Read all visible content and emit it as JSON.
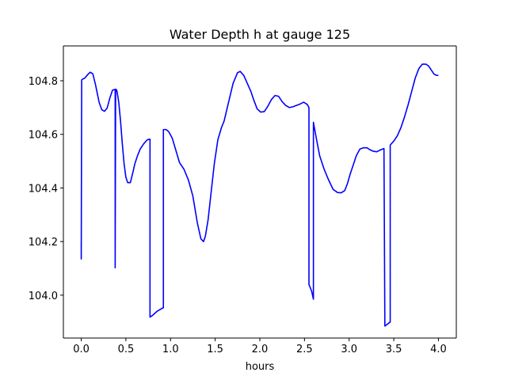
{
  "chart_data": {
    "type": "line",
    "title": "Water Depth h at gauge 125",
    "xlabel": "hours",
    "ylabel": "",
    "xlim": [
      -0.2,
      4.2
    ],
    "ylim": [
      103.84,
      104.93
    ],
    "xticks": [
      0.0,
      0.5,
      1.0,
      1.5,
      2.0,
      2.5,
      3.0,
      3.5,
      4.0
    ],
    "xtick_labels": [
      "0.0",
      "0.5",
      "1.0",
      "1.5",
      "2.0",
      "2.5",
      "3.0",
      "3.5",
      "4.0"
    ],
    "yticks": [
      104.0,
      104.2,
      104.4,
      104.6,
      104.8
    ],
    "ytick_labels": [
      "104.0",
      "104.2",
      "104.4",
      "104.6",
      "104.8"
    ],
    "grid": false,
    "series": [
      {
        "color": "#0000ff",
        "x": [
          0.0,
          0.0,
          0.005,
          0.01,
          0.04,
          0.07,
          0.1,
          0.13,
          0.16,
          0.2,
          0.23,
          0.26,
          0.29,
          0.32,
          0.35,
          0.38,
          0.38,
          0.385,
          0.39,
          0.4,
          0.42,
          0.44,
          0.46,
          0.48,
          0.5,
          0.52,
          0.55,
          0.58,
          0.6,
          0.63,
          0.66,
          0.7,
          0.74,
          0.77,
          0.77,
          0.8,
          0.85,
          0.9,
          0.92,
          0.92,
          0.95,
          0.98,
          1.02,
          1.06,
          1.1,
          1.15,
          1.2,
          1.25,
          1.3,
          1.34,
          1.37,
          1.39,
          1.42,
          1.45,
          1.49,
          1.53,
          1.57,
          1.6,
          1.65,
          1.7,
          1.75,
          1.78,
          1.82,
          1.86,
          1.9,
          1.93,
          1.97,
          2.01,
          2.05,
          2.09,
          2.13,
          2.17,
          2.21,
          2.25,
          2.29,
          2.33,
          2.37,
          2.41,
          2.45,
          2.49,
          2.53,
          2.55,
          2.55,
          2.58,
          2.6,
          2.6,
          2.63,
          2.67,
          2.72,
          2.77,
          2.82,
          2.87,
          2.91,
          2.95,
          2.98,
          3.01,
          3.04,
          3.08,
          3.12,
          3.16,
          3.2,
          3.23,
          3.27,
          3.31,
          3.35,
          3.39,
          3.4,
          3.41,
          3.46,
          3.46,
          3.5,
          3.54,
          3.58,
          3.62,
          3.66,
          3.7,
          3.74,
          3.78,
          3.82,
          3.86,
          3.89,
          3.92,
          3.95,
          3.98,
          4.0
        ],
        "y": [
          104.2,
          104.135,
          104.803,
          104.805,
          104.81,
          104.822,
          104.832,
          104.826,
          104.785,
          104.72,
          104.692,
          104.686,
          104.698,
          104.735,
          104.765,
          104.768,
          104.102,
          104.755,
          104.768,
          104.762,
          104.72,
          104.65,
          104.565,
          104.49,
          104.44,
          104.42,
          104.42,
          104.46,
          104.49,
          104.52,
          104.545,
          104.565,
          104.58,
          104.582,
          103.918,
          103.925,
          103.94,
          103.95,
          103.953,
          104.618,
          104.618,
          104.61,
          104.585,
          104.54,
          104.495,
          104.47,
          104.43,
          104.37,
          104.27,
          104.21,
          104.2,
          104.22,
          104.28,
          104.37,
          104.49,
          104.58,
          104.625,
          104.65,
          104.72,
          104.79,
          104.83,
          104.835,
          104.82,
          104.79,
          104.76,
          104.73,
          104.695,
          104.683,
          104.685,
          104.705,
          104.73,
          104.745,
          104.742,
          104.722,
          104.708,
          104.7,
          104.703,
          104.708,
          104.713,
          104.72,
          104.712,
          104.7,
          104.04,
          104.015,
          103.985,
          104.645,
          104.59,
          104.52,
          104.47,
          104.43,
          104.395,
          104.383,
          104.382,
          104.39,
          104.415,
          104.45,
          104.48,
          104.52,
          104.545,
          104.55,
          104.55,
          104.543,
          104.537,
          104.535,
          104.542,
          104.547,
          103.885,
          103.887,
          103.9,
          104.56,
          104.575,
          104.595,
          104.625,
          104.665,
          104.71,
          104.76,
          104.81,
          104.845,
          104.862,
          104.862,
          104.855,
          104.84,
          104.825,
          104.82,
          104.82
        ]
      }
    ]
  }
}
